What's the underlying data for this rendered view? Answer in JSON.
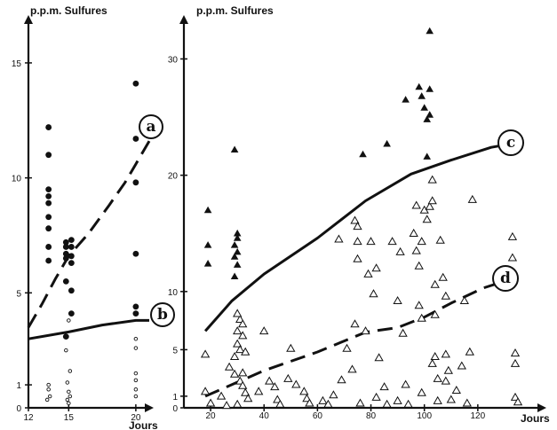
{
  "chart_data": [
    {
      "type": "scatter",
      "ylabel": "p.p.m. Sulfures",
      "xlabel": "Jours",
      "xlim": [
        12,
        21
      ],
      "ylim": [
        0,
        16
      ],
      "x_ticks": [
        12,
        15,
        20
      ],
      "y_ticks": [
        0,
        1,
        5,
        10,
        15
      ],
      "series": [
        {
          "marker": "filled-circle",
          "points": [
            [
              13.5,
              12.2
            ],
            [
              13.5,
              11.0
            ],
            [
              13.5,
              9.5
            ],
            [
              13.5,
              9.2
            ],
            [
              13.5,
              8.9
            ],
            [
              13.5,
              8.3
            ],
            [
              13.5,
              7.8
            ],
            [
              13.5,
              7.0
            ],
            [
              13.5,
              6.4
            ],
            [
              14.8,
              7.2
            ],
            [
              14.8,
              7.0
            ],
            [
              14.8,
              6.7
            ],
            [
              14.8,
              6.5
            ],
            [
              15.2,
              7.3
            ],
            [
              15.2,
              7.0
            ],
            [
              15.2,
              6.6
            ],
            [
              15.2,
              6.3
            ],
            [
              14.8,
              5.5
            ],
            [
              15.2,
              5.1
            ],
            [
              15.2,
              4.1
            ],
            [
              14.8,
              3.1
            ],
            [
              20.0,
              14.1
            ],
            [
              20.0,
              11.7
            ],
            [
              20.0,
              9.8
            ],
            [
              20.0,
              6.7
            ],
            [
              20.0,
              4.4
            ],
            [
              20.0,
              4.1
            ]
          ]
        },
        {
          "marker": "open-circle-small",
          "points": [
            [
              15.0,
              3.8
            ],
            [
              14.8,
              2.5
            ],
            [
              15.1,
              1.6
            ],
            [
              14.9,
              1.1
            ],
            [
              15.0,
              0.7
            ],
            [
              15.1,
              0.5
            ],
            [
              14.9,
              0.35
            ],
            [
              15.0,
              0.2
            ],
            [
              13.5,
              1.0
            ],
            [
              13.5,
              0.8
            ],
            [
              13.6,
              0.5
            ],
            [
              13.4,
              0.35
            ],
            [
              20.0,
              3.0
            ],
            [
              20.0,
              2.6
            ],
            [
              20.0,
              1.5
            ],
            [
              20.0,
              1.2
            ],
            [
              20.0,
              0.8
            ],
            [
              20.0,
              0.5
            ]
          ]
        }
      ],
      "curves": [
        {
          "label": "a",
          "style": "dashed",
          "x": [
            12.0,
            13.0,
            14.0,
            15.0,
            16.5,
            18.0,
            19.2,
            20.0,
            21.0
          ],
          "y": [
            3.5,
            4.5,
            5.6,
            6.6,
            7.6,
            8.8,
            9.8,
            10.6,
            11.6
          ]
        },
        {
          "label": "b",
          "style": "solid",
          "x": [
            12.0,
            15.0,
            17.5,
            20.0,
            21.0
          ],
          "y": [
            3.0,
            3.3,
            3.6,
            3.8,
            3.8
          ]
        }
      ]
    },
    {
      "type": "scatter",
      "ylabel": "p.p.m.  Sulfures",
      "xlabel": "Jours",
      "xlim": [
        10,
        140
      ],
      "ylim": [
        0,
        34
      ],
      "x_ticks": [
        20,
        40,
        60,
        80,
        100,
        120
      ],
      "y_ticks": [
        0,
        1,
        5,
        10,
        20,
        30
      ],
      "series": [
        {
          "marker": "filled-triangle",
          "points": [
            [
              19,
              17.0
            ],
            [
              19,
              14.0
            ],
            [
              19,
              12.4
            ],
            [
              29,
              22.2
            ],
            [
              30,
              15.0
            ],
            [
              30,
              14.6
            ],
            [
              29,
              14.0
            ],
            [
              30,
              13.4
            ],
            [
              29,
              13.0
            ],
            [
              30,
              12.3
            ],
            [
              29,
              11.3
            ],
            [
              77,
              21.8
            ],
            [
              86,
              22.7
            ],
            [
              93,
              26.5
            ],
            [
              98,
              27.6
            ],
            [
              99,
              26.8
            ],
            [
              102,
              27.4
            ],
            [
              100,
              25.8
            ],
            [
              102,
              25.2
            ],
            [
              101,
              24.8
            ],
            [
              101,
              21.6
            ],
            [
              102,
              32.4
            ]
          ]
        },
        {
          "marker": "open-triangle",
          "points": [
            [
              18,
              4.6
            ],
            [
              18,
              1.4
            ],
            [
              20,
              0.4
            ],
            [
              24,
              1.0
            ],
            [
              26,
              0.2
            ],
            [
              27,
              3.5
            ],
            [
              29,
              2.9
            ],
            [
              29,
              4.4
            ],
            [
              30,
              5.5
            ],
            [
              30,
              6.6
            ],
            [
              31,
              7.6
            ],
            [
              32,
              6.2
            ],
            [
              31,
              5.0
            ],
            [
              30,
              8.1
            ],
            [
              32,
              7.2
            ],
            [
              33,
              4.8
            ],
            [
              32,
              3.0
            ],
            [
              31,
              2.3
            ],
            [
              32,
              1.9
            ],
            [
              33,
              1.3
            ],
            [
              34,
              0.8
            ],
            [
              30,
              0.3
            ],
            [
              38,
              1.4
            ],
            [
              40,
              6.6
            ],
            [
              42,
              2.3
            ],
            [
              44,
              1.8
            ],
            [
              45,
              0.7
            ],
            [
              46,
              0.3
            ],
            [
              49,
              2.5
            ],
            [
              50,
              5.1
            ],
            [
              52,
              2.0
            ],
            [
              55,
              1.4
            ],
            [
              56,
              0.8
            ],
            [
              57,
              0.4
            ],
            [
              62,
              0.6
            ],
            [
              64,
              0.3
            ],
            [
              66,
              1.1
            ],
            [
              68,
              14.5
            ],
            [
              69,
              2.4
            ],
            [
              71,
              5.1
            ],
            [
              73,
              3.3
            ],
            [
              74,
              16.1
            ],
            [
              75,
              15.6
            ],
            [
              75,
              14.3
            ],
            [
              75,
              12.8
            ],
            [
              74,
              7.2
            ],
            [
              76,
              0.4
            ],
            [
              78,
              6.6
            ],
            [
              79,
              11.5
            ],
            [
              80,
              14.3
            ],
            [
              81,
              9.8
            ],
            [
              82,
              12.0
            ],
            [
              83,
              4.3
            ],
            [
              82,
              0.9
            ],
            [
              85,
              1.8
            ],
            [
              86,
              0.3
            ],
            [
              88,
              14.3
            ],
            [
              90,
              0.6
            ],
            [
              90,
              9.2
            ],
            [
              91,
              13.4
            ],
            [
              92,
              6.4
            ],
            [
              93,
              2.0
            ],
            [
              94,
              0.3
            ],
            [
              96,
              15.0
            ],
            [
              97,
              13.5
            ],
            [
              97,
              17.4
            ],
            [
              98,
              12.2
            ],
            [
              98,
              8.8
            ],
            [
              99,
              14.3
            ],
            [
              99,
              1.3
            ],
            [
              99,
              7.7
            ],
            [
              100,
              17.0
            ],
            [
              101,
              16.2
            ],
            [
              102,
              17.3
            ],
            [
              103,
              19.6
            ],
            [
              103,
              17.8
            ],
            [
              104,
              10.6
            ],
            [
              104,
              8.0
            ],
            [
              104,
              4.4
            ],
            [
              103,
              3.8
            ],
            [
              105,
              2.5
            ],
            [
              105,
              0.6
            ],
            [
              106,
              14.4
            ],
            [
              107,
              11.2
            ],
            [
              108,
              9.6
            ],
            [
              108,
              4.6
            ],
            [
              108,
              2.3
            ],
            [
              109,
              3.2
            ],
            [
              110,
              0.7
            ],
            [
              112,
              1.5
            ],
            [
              114,
              3.6
            ],
            [
              115,
              9.2
            ],
            [
              116,
              0.4
            ],
            [
              117,
              4.8
            ],
            [
              118,
              17.9
            ],
            [
              133,
              14.7
            ],
            [
              133,
              12.9
            ],
            [
              134,
              4.7
            ],
            [
              134,
              3.8
            ],
            [
              134,
              0.9
            ],
            [
              135,
              0.5
            ]
          ]
        }
      ],
      "curves": [
        {
          "label": "c",
          "style": "solid",
          "x": [
            18,
            28,
            40,
            60,
            78,
            95,
            110,
            125,
            135
          ],
          "y": [
            6.6,
            9.2,
            11.5,
            14.6,
            17.8,
            20.1,
            21.3,
            22.4,
            22.8
          ]
        },
        {
          "label": "d",
          "style": "dashed",
          "x": [
            18,
            40,
            60,
            78,
            90,
            100,
            110,
            122,
            133
          ],
          "y": [
            1.0,
            3.2,
            4.8,
            6.5,
            6.9,
            7.8,
            9.0,
            10.3,
            11.1
          ]
        }
      ]
    }
  ]
}
